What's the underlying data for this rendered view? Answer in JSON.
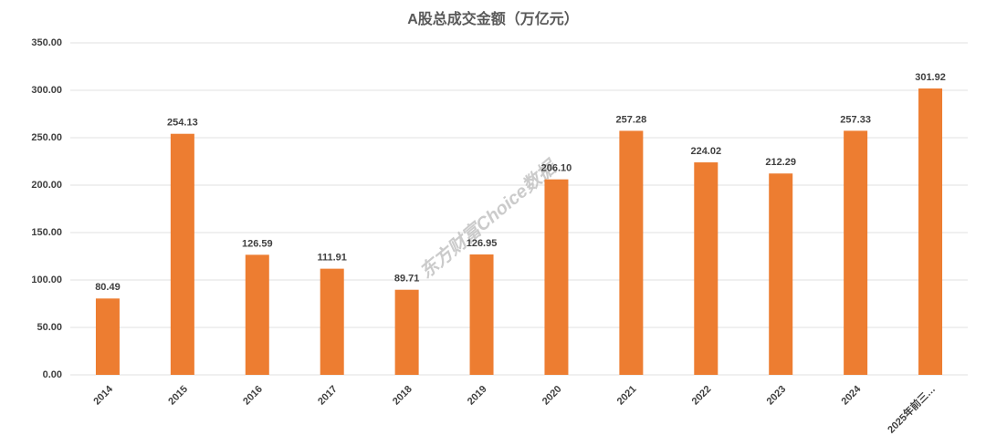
{
  "chart_data": {
    "type": "bar",
    "title": "A股总成交金额（万亿元）",
    "watermark": "东方财富Choice数据",
    "categories": [
      "2014",
      "2015",
      "2016",
      "2017",
      "2018",
      "2019",
      "2020",
      "2021",
      "2022",
      "2023",
      "2024",
      "2025年前三…"
    ],
    "values": [
      80.49,
      254.13,
      126.59,
      111.91,
      89.71,
      126.95,
      206.1,
      257.28,
      224.02,
      212.29,
      257.33,
      301.92
    ],
    "value_labels": [
      "80.49",
      "254.13",
      "126.59",
      "111.91",
      "89.71",
      "126.95",
      "206.10",
      "257.28",
      "224.02",
      "212.29",
      "257.33",
      "301.92"
    ],
    "color": "#ed7d31",
    "ylim": [
      0,
      350
    ],
    "yticks": [
      {
        "value": 0,
        "label": "0.00"
      },
      {
        "value": 50,
        "label": "50.00"
      },
      {
        "value": 100,
        "label": "100.00"
      },
      {
        "value": 150,
        "label": "150.00"
      },
      {
        "value": 200,
        "label": "200.00"
      },
      {
        "value": 250,
        "label": "250.00"
      },
      {
        "value": 300,
        "label": "300.00"
      },
      {
        "value": 350,
        "label": "350.00"
      }
    ],
    "grid": true
  }
}
